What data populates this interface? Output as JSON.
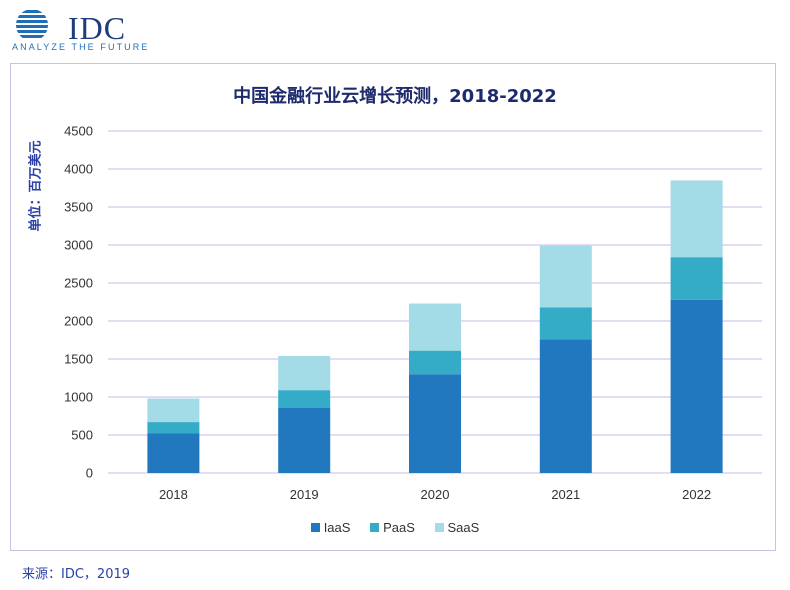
{
  "logo": {
    "name": "IDC",
    "tagline": "ANALYZE THE FUTURE"
  },
  "source": "来源：IDC，2019",
  "colors": {
    "IaaS": "#2278be",
    "PaaS": "#34abc7",
    "SaaS": "#a3dbe6",
    "grid": "#c7b9e6",
    "axis_text": "#333333",
    "title": "#1d2a6b"
  },
  "chart_data": {
    "type": "bar",
    "stacked": true,
    "title": "中国金融行业云增长预测，2018-2022",
    "xlabel": "",
    "ylabel": "单位：百万美元",
    "categories": [
      "2018",
      "2019",
      "2020",
      "2021",
      "2022"
    ],
    "series": [
      {
        "name": "IaaS",
        "values": [
          520,
          860,
          1300,
          1760,
          2280
        ]
      },
      {
        "name": "PaaS",
        "values": [
          150,
          230,
          310,
          420,
          560
        ]
      },
      {
        "name": "SaaS",
        "values": [
          310,
          450,
          620,
          810,
          1010
        ]
      }
    ],
    "ylim": [
      0,
      4500
    ],
    "yticks": [
      0,
      500,
      1000,
      1500,
      2000,
      2500,
      3000,
      3500,
      4000,
      4500
    ],
    "grid": true,
    "legend": "bottom-center"
  }
}
